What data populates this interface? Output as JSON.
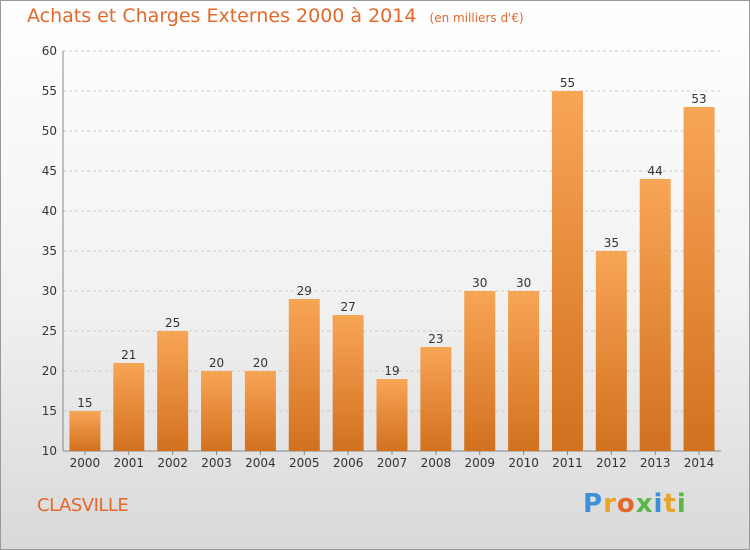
{
  "chart_data": {
    "type": "bar",
    "title": "Achats et Charges Externes 2000 à 2014",
    "subtitle": "(en milliers d'€)",
    "categories": [
      "2000",
      "2001",
      "2002",
      "2003",
      "2004",
      "2005",
      "2006",
      "2007",
      "2008",
      "2009",
      "2010",
      "2011",
      "2012",
      "2013",
      "2014"
    ],
    "values": [
      15,
      21,
      25,
      20,
      20,
      29,
      27,
      19,
      23,
      30,
      30,
      55,
      35,
      44,
      53
    ],
    "ylim": [
      10,
      60
    ],
    "yticks": [
      10,
      15,
      20,
      25,
      30,
      35,
      40,
      45,
      50,
      55,
      60
    ],
    "grid": true,
    "data_labels": true,
    "bar_color_top": "#f8a556",
    "bar_color_bottom": "#d2711f"
  },
  "footer": {
    "commune": "CLASVILLE",
    "logo_letters": [
      "P",
      "r",
      "o",
      "x",
      "i",
      "t",
      "i"
    ],
    "logo_colors": [
      "#3c8fd8",
      "#e8a428",
      "#e2682b",
      "#58b848",
      "#3c8fd8",
      "#e8a428",
      "#58b848"
    ]
  },
  "colors": {
    "accent": "#e2682b",
    "grid": "#cccccc",
    "axis_text": "#333333"
  }
}
